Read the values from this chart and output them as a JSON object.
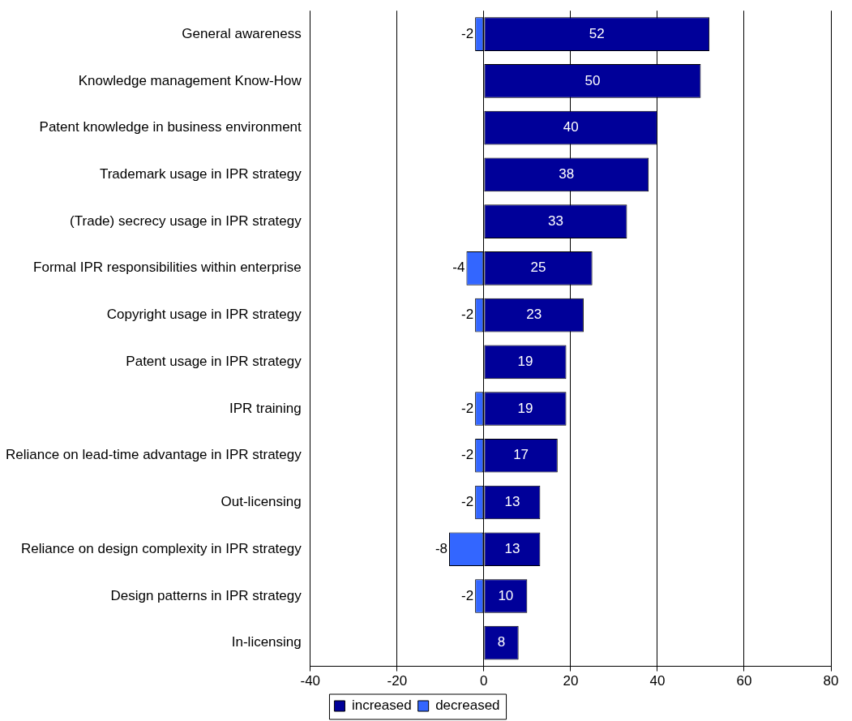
{
  "chart_data": {
    "type": "bar",
    "orientation": "horizontal",
    "stacked": true,
    "categories": [
      "General awareness",
      "Knowledge management Know-How",
      "Patent knowledge in business environment",
      "Trademark usage in IPR strategy",
      "(Trade) secrecy usage in IPR strategy",
      "Formal IPR responsibilities within enterprise",
      "Copyright usage in IPR strategy",
      "Patent usage in IPR strategy",
      "IPR training",
      "Reliance on lead-time advantage in IPR strategy",
      "Out-licensing",
      "Reliance on design complexity in IPR strategy",
      "Design patterns in IPR strategy",
      "In-licensing"
    ],
    "series": [
      {
        "name": "increased",
        "color": "#000099",
        "values": [
          52,
          50,
          40,
          38,
          33,
          25,
          23,
          19,
          19,
          17,
          13,
          13,
          10,
          8
        ]
      },
      {
        "name": "decreased",
        "color": "#3366ff",
        "values": [
          -2,
          null,
          null,
          null,
          null,
          -4,
          -2,
          null,
          -2,
          -2,
          -2,
          -8,
          -2,
          null
        ]
      }
    ],
    "xlim": [
      -40,
      80
    ],
    "xticks": [
      -40,
      -20,
      0,
      20,
      40,
      60,
      80
    ],
    "grid": "x",
    "legend": "bottom",
    "data_labels": true
  }
}
